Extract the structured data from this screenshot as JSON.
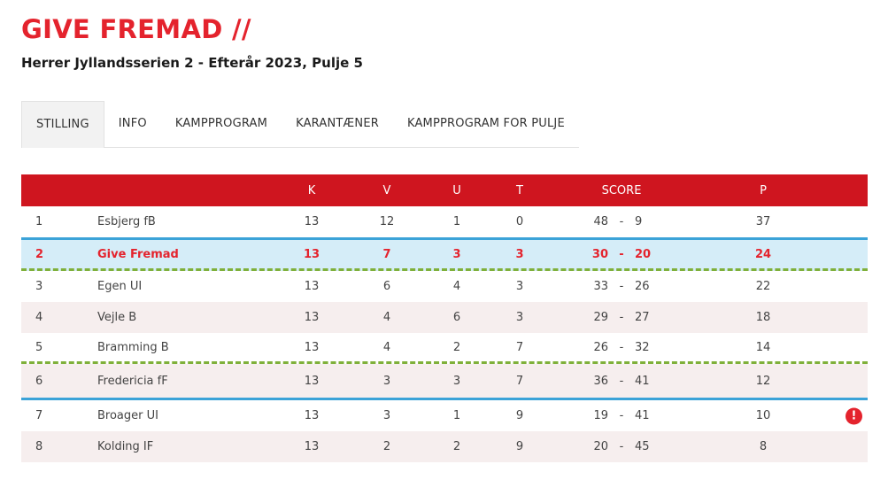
{
  "header": {
    "title": "GIVE FREMAD //",
    "subtitle": "Herrer Jyllandsserien 2 - Efterår 2023, Pulje 5"
  },
  "tabs": [
    {
      "label": "STILLING",
      "active": true
    },
    {
      "label": "INFO",
      "active": false
    },
    {
      "label": "KAMPPROGRAM",
      "active": false
    },
    {
      "label": "KARANTÆNER",
      "active": false
    },
    {
      "label": "KAMPPROGRAM FOR PULJE",
      "active": false
    }
  ],
  "table": {
    "columns": {
      "k": "K",
      "v": "V",
      "u": "U",
      "t": "T",
      "score": "SCORE",
      "p": "P"
    },
    "score_separator": "-",
    "rows": [
      {
        "pos": "1",
        "team": "Esbjerg fB",
        "k": "13",
        "v": "12",
        "u": "1",
        "t": "0",
        "gf": "48",
        "ga": "9",
        "p": "37"
      },
      {
        "pos": "2",
        "team": "Give Fremad",
        "k": "13",
        "v": "7",
        "u": "3",
        "t": "3",
        "gf": "30",
        "ga": "20",
        "p": "24"
      },
      {
        "pos": "3",
        "team": "Egen UI",
        "k": "13",
        "v": "6",
        "u": "4",
        "t": "3",
        "gf": "33",
        "ga": "26",
        "p": "22"
      },
      {
        "pos": "4",
        "team": "Vejle B",
        "k": "13",
        "v": "4",
        "u": "6",
        "t": "3",
        "gf": "29",
        "ga": "27",
        "p": "18"
      },
      {
        "pos": "5",
        "team": "Bramming B",
        "k": "13",
        "v": "4",
        "u": "2",
        "t": "7",
        "gf": "26",
        "ga": "32",
        "p": "14"
      },
      {
        "pos": "6",
        "team": "Fredericia fF",
        "k": "13",
        "v": "3",
        "u": "3",
        "t": "7",
        "gf": "36",
        "ga": "41",
        "p": "12"
      },
      {
        "pos": "7",
        "team": "Broager UI",
        "k": "13",
        "v": "3",
        "u": "1",
        "t": "9",
        "gf": "19",
        "ga": "41",
        "p": "10",
        "alert_icon": "!"
      },
      {
        "pos": "8",
        "team": "Kolding IF",
        "k": "13",
        "v": "2",
        "u": "2",
        "t": "9",
        "gf": "20",
        "ga": "45",
        "p": "8"
      }
    ]
  },
  "colors": {
    "brand_red": "#e4232d",
    "header_red": "#cf151f",
    "highlight_blue": "#d5edf8",
    "line_blue": "#3ba3d8",
    "line_green": "#7fb03a"
  }
}
